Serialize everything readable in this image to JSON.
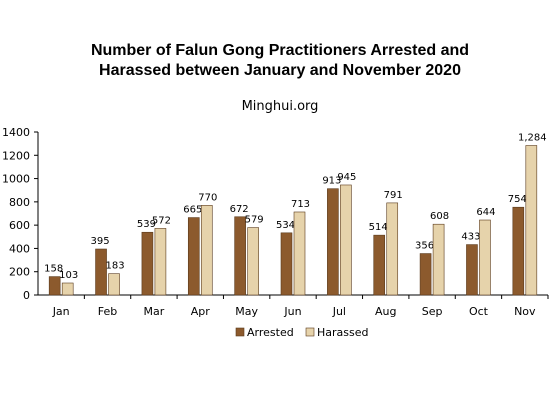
{
  "chart_data": {
    "type": "bar",
    "title": "Number of Falun Gong Practitioners Arrested and Harassed between January and November 2020",
    "title_lines": [
      "Number of Falun Gong Practitioners Arrested and",
      "Harassed between January and November 2020"
    ],
    "subtitle": "Minghui.org",
    "categories": [
      "Jan",
      "Feb",
      "Mar",
      "Apr",
      "May",
      "Jun",
      "Jul",
      "Aug",
      "Sep",
      "Oct",
      "Nov"
    ],
    "series": [
      {
        "name": "Arrested",
        "color": "#8c5a2d",
        "values": [
          158,
          395,
          539,
          665,
          672,
          534,
          913,
          514,
          356,
          433,
          754
        ],
        "labels": [
          "158",
          "395",
          "539",
          "665",
          "672",
          "534",
          "913",
          "514",
          "356",
          "433",
          "754"
        ]
      },
      {
        "name": "Harassed",
        "color": "#e6d3ab",
        "values": [
          103,
          183,
          572,
          770,
          579,
          713,
          945,
          791,
          608,
          644,
          1284
        ],
        "labels": [
          "103",
          "183",
          "572",
          "770",
          "579",
          "713",
          "945",
          "791",
          "608",
          "644",
          "1,284"
        ]
      }
    ],
    "ylim": [
      0,
      1400
    ],
    "yticks": [
      0,
      200,
      400,
      600,
      800,
      1000,
      1200,
      1400
    ],
    "ytick_labels": [
      "0",
      "200",
      "400",
      "600",
      "800",
      "1000",
      "1200",
      "1400"
    ],
    "grid": false,
    "legend": "bottom-center",
    "xlabel": "",
    "ylabel": ""
  }
}
